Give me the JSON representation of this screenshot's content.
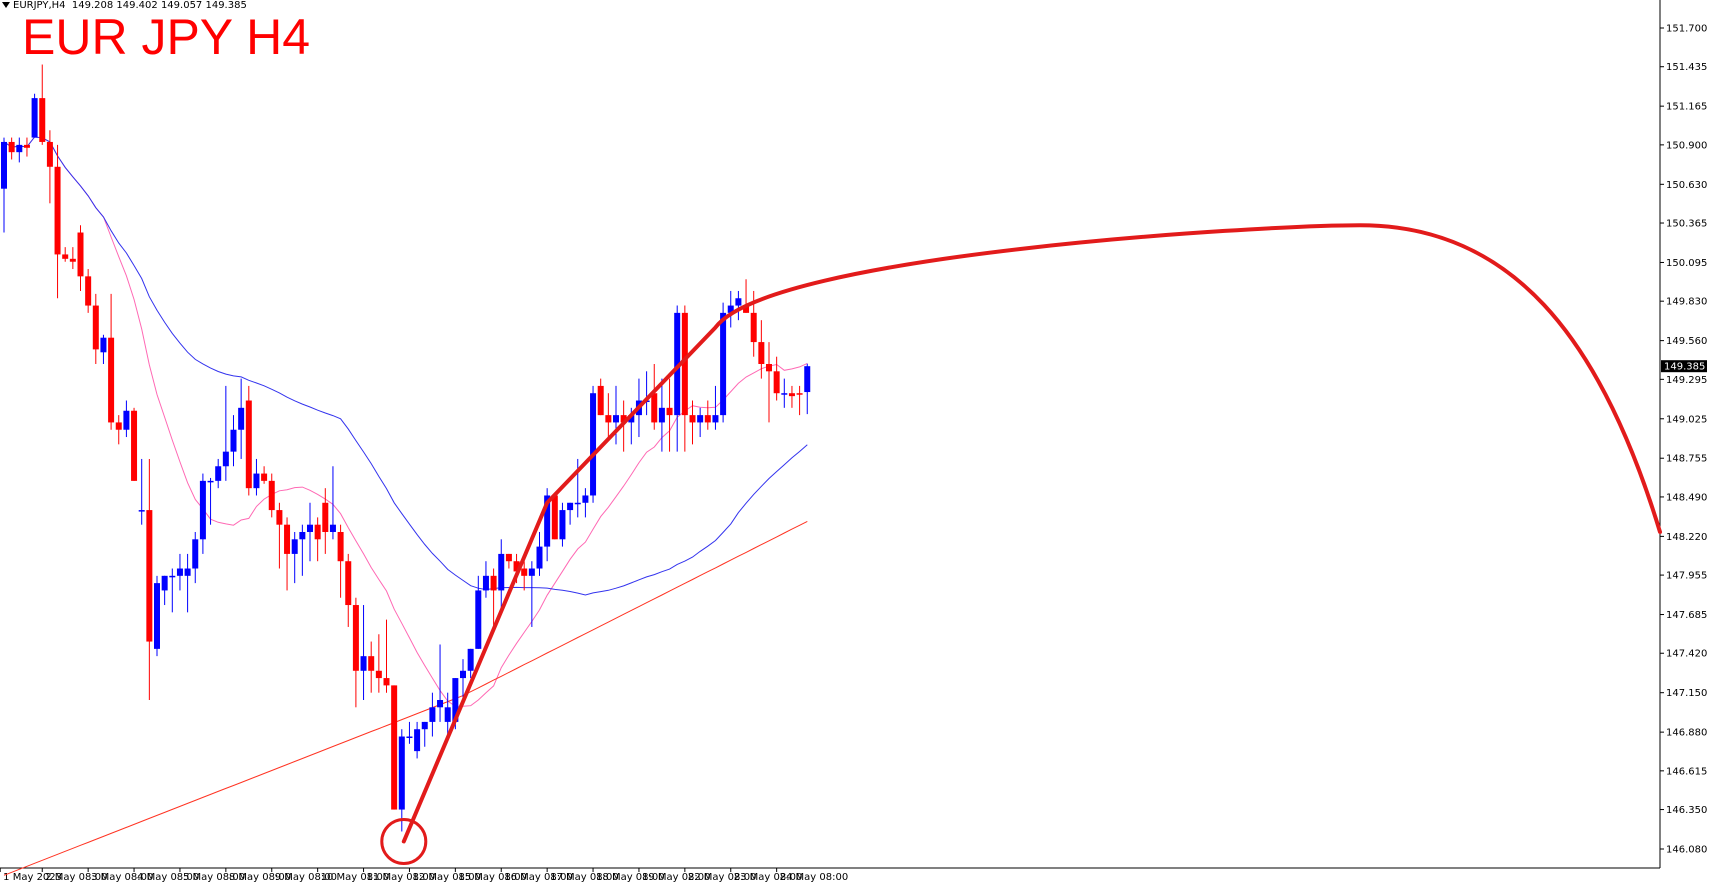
{
  "header": {
    "symbol": "EURJPY,H4",
    "ohlc": "149.208 149.402 149.057 149.385"
  },
  "annotation_title": "EUR JPY H4",
  "colors": {
    "bull": "#0000ff",
    "bear": "#ff0000",
    "ma_fast": "#ff69b4",
    "ma_mid": "#3333ee",
    "ma_slow": "#ff3322",
    "annotation": "#e21b1b",
    "background": "#ffffff"
  },
  "chart_data": {
    "type": "candlestick",
    "title": "EUR JPY H4",
    "symbol": "EURJPY",
    "timeframe": "H4",
    "ylim": [
      145.95,
      151.75
    ],
    "y_ticks": [
      "151.700",
      "151.435",
      "151.165",
      "150.900",
      "150.630",
      "150.365",
      "150.095",
      "149.830",
      "149.560",
      "149.295",
      "149.025",
      "148.755",
      "148.490",
      "148.220",
      "147.955",
      "147.685",
      "147.420",
      "147.150",
      "146.880",
      "146.615",
      "146.350",
      "146.080"
    ],
    "x_ticks": [
      {
        "bar": -0.5,
        "label": "1 May 2023"
      },
      {
        "bar": 5,
        "label": "2 May 08:00"
      },
      {
        "bar": 11,
        "label": "3 May 08:00"
      },
      {
        "bar": 17,
        "label": "4 May 08:00"
      },
      {
        "bar": 23,
        "label": "5 May 08:00"
      },
      {
        "bar": 29,
        "label": "8 May 08:00"
      },
      {
        "bar": 35,
        "label": "9 May 08:00"
      },
      {
        "bar": 41,
        "label": "10 May 08:00"
      },
      {
        "bar": 47,
        "label": "11 May 08:00"
      },
      {
        "bar": 53,
        "label": "12 May 08:00"
      },
      {
        "bar": 59,
        "label": "15 May 08:00"
      },
      {
        "bar": 65,
        "label": "16 May 08:00"
      },
      {
        "bar": 71,
        "label": "17 May 08:00"
      },
      {
        "bar": 77,
        "label": "18 May 08:00"
      },
      {
        "bar": 83,
        "label": "19 May 08:00"
      },
      {
        "bar": 89,
        "label": "22 May 08:00"
      },
      {
        "bar": 95,
        "label": "23 May 08:00"
      },
      {
        "bar": 101,
        "label": "24 May 08:00"
      }
    ],
    "current_price": "149.385",
    "candles": [
      [
        150.6,
        150.95,
        150.3,
        150.92
      ],
      [
        150.92,
        150.95,
        150.8,
        150.85
      ],
      [
        150.85,
        150.95,
        150.78,
        150.9
      ],
      [
        150.9,
        150.95,
        150.82,
        150.88
      ],
      [
        150.95,
        151.25,
        150.95,
        151.22
      ],
      [
        151.22,
        151.45,
        150.9,
        150.92
      ],
      [
        150.92,
        151.0,
        150.5,
        150.75
      ],
      [
        150.75,
        150.9,
        149.85,
        150.15
      ],
      [
        150.15,
        150.2,
        150.1,
        150.12
      ],
      [
        150.12,
        150.2,
        150.05,
        150.1
      ],
      [
        150.3,
        150.35,
        149.9,
        150.0
      ],
      [
        150.0,
        150.05,
        149.75,
        149.8
      ],
      [
        149.8,
        149.88,
        149.4,
        149.5
      ],
      [
        149.48,
        149.6,
        149.4,
        149.58
      ],
      [
        149.58,
        149.88,
        148.95,
        149.0
      ],
      [
        149.0,
        149.05,
        148.85,
        148.95
      ],
      [
        148.95,
        149.15,
        148.9,
        149.08
      ],
      [
        149.08,
        149.1,
        148.6,
        148.6
      ],
      [
        148.4,
        148.75,
        148.3,
        148.4
      ],
      [
        148.4,
        148.75,
        147.1,
        147.5
      ],
      [
        147.45,
        147.95,
        147.4,
        147.9
      ],
      [
        147.85,
        147.95,
        147.75,
        147.95
      ],
      [
        147.95,
        148.0,
        147.7,
        147.95
      ],
      [
        147.95,
        148.1,
        147.85,
        148.0
      ],
      [
        147.95,
        148.1,
        147.7,
        148.0
      ],
      [
        148.0,
        148.25,
        147.9,
        148.2
      ],
      [
        148.2,
        148.65,
        148.1,
        148.6
      ],
      [
        148.6,
        148.62,
        148.3,
        148.6
      ],
      [
        148.6,
        148.75,
        148.55,
        148.7
      ],
      [
        148.7,
        149.25,
        148.6,
        148.8
      ],
      [
        148.8,
        149.05,
        148.7,
        148.95
      ],
      [
        148.95,
        149.3,
        148.75,
        149.1
      ],
      [
        149.15,
        149.25,
        148.5,
        148.55
      ],
      [
        148.55,
        148.75,
        148.5,
        148.65
      ],
      [
        148.65,
        148.7,
        148.58,
        148.6
      ],
      [
        148.6,
        148.65,
        148.35,
        148.4
      ],
      [
        148.4,
        148.45,
        148.0,
        148.3
      ],
      [
        148.3,
        148.35,
        147.85,
        148.1
      ],
      [
        148.1,
        148.25,
        147.9,
        148.2
      ],
      [
        148.2,
        148.3,
        147.95,
        148.25
      ],
      [
        148.25,
        148.45,
        148.05,
        148.3
      ],
      [
        148.3,
        148.35,
        148.05,
        148.2
      ],
      [
        148.45,
        148.55,
        148.1,
        148.25
      ],
      [
        148.25,
        148.7,
        148.2,
        148.3
      ],
      [
        148.25,
        148.3,
        147.8,
        148.05
      ],
      [
        148.05,
        148.1,
        147.6,
        147.75
      ],
      [
        147.75,
        147.8,
        147.05,
        147.3
      ],
      [
        147.3,
        147.75,
        147.1,
        147.4
      ],
      [
        147.4,
        147.5,
        147.15,
        147.3
      ],
      [
        147.3,
        147.55,
        147.15,
        147.25
      ],
      [
        147.25,
        147.65,
        147.15,
        147.2
      ],
      [
        147.2,
        147.2,
        146.35,
        146.35
      ],
      [
        146.35,
        146.9,
        146.2,
        146.85
      ],
      [
        146.85,
        146.95,
        146.8,
        146.85
      ],
      [
        146.75,
        146.95,
        146.7,
        146.9
      ],
      [
        146.9,
        146.95,
        146.78,
        146.95
      ],
      [
        146.95,
        147.15,
        146.85,
        147.05
      ],
      [
        147.05,
        147.48,
        146.95,
        147.1
      ],
      [
        146.95,
        147.15,
        146.85,
        147.05
      ],
      [
        146.95,
        147.25,
        146.9,
        147.25
      ],
      [
        147.25,
        147.38,
        147.1,
        147.3
      ],
      [
        147.3,
        147.45,
        147.25,
        147.45
      ],
      [
        147.45,
        147.95,
        147.45,
        147.85
      ],
      [
        147.85,
        148.05,
        147.8,
        147.95
      ],
      [
        147.95,
        148.0,
        147.6,
        147.85
      ],
      [
        147.85,
        148.2,
        147.7,
        148.1
      ],
      [
        148.1,
        148.1,
        148.0,
        148.05
      ],
      [
        148.05,
        148.1,
        147.9,
        147.98
      ],
      [
        148.0,
        148.05,
        147.85,
        147.95
      ],
      [
        147.95,
        148.05,
        147.6,
        148.0
      ],
      [
        148.0,
        148.25,
        147.95,
        148.15
      ],
      [
        148.15,
        148.55,
        148.05,
        148.5
      ],
      [
        148.5,
        148.52,
        148.2,
        148.2
      ],
      [
        148.2,
        148.45,
        148.15,
        148.4
      ],
      [
        148.4,
        148.45,
        148.3,
        148.45
      ],
      [
        148.45,
        148.75,
        148.35,
        148.45
      ],
      [
        148.45,
        148.55,
        148.35,
        148.5
      ],
      [
        148.5,
        149.25,
        148.45,
        149.2
      ],
      [
        149.25,
        149.3,
        149.05,
        149.05
      ],
      [
        149.05,
        149.2,
        148.9,
        149.0
      ],
      [
        149.0,
        149.25,
        148.85,
        149.05
      ],
      [
        149.05,
        149.15,
        148.8,
        149.0
      ],
      [
        149.0,
        149.1,
        148.85,
        149.05
      ],
      [
        149.05,
        149.3,
        148.9,
        149.15
      ],
      [
        149.15,
        149.35,
        149.05,
        149.15
      ],
      [
        149.2,
        149.4,
        148.95,
        149.0
      ],
      [
        149.0,
        149.3,
        148.8,
        149.1
      ],
      [
        149.1,
        149.3,
        148.8,
        149.05
      ],
      [
        149.05,
        149.8,
        148.8,
        149.75
      ],
      [
        149.75,
        149.8,
        148.8,
        149.05
      ],
      [
        149.05,
        149.15,
        148.85,
        149.0
      ],
      [
        149.0,
        149.1,
        148.9,
        149.05
      ],
      [
        149.05,
        149.15,
        148.95,
        149.0
      ],
      [
        149.0,
        149.25,
        148.95,
        149.05
      ],
      [
        149.05,
        149.82,
        149.0,
        149.75
      ],
      [
        149.75,
        149.9,
        149.65,
        149.8
      ],
      [
        149.8,
        149.9,
        149.7,
        149.85
      ],
      [
        149.8,
        149.98,
        149.75,
        149.75
      ],
      [
        149.75,
        149.9,
        149.45,
        149.55
      ],
      [
        149.55,
        149.7,
        149.3,
        149.4
      ],
      [
        149.4,
        149.55,
        149.0,
        149.35
      ],
      [
        149.35,
        149.45,
        149.15,
        149.2
      ],
      [
        149.2,
        149.3,
        149.1,
        149.2
      ],
      [
        149.2,
        149.25,
        149.1,
        149.18
      ],
      [
        149.2,
        149.25,
        149.05,
        149.19
      ],
      [
        149.208,
        149.402,
        149.057,
        149.385
      ]
    ]
  }
}
